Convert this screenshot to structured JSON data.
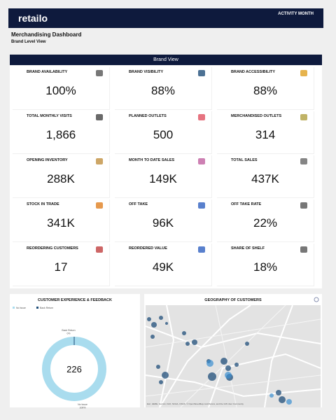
{
  "header": {
    "logo": "retailo",
    "filter": "ACTIVITY MONTH"
  },
  "page": {
    "title": "Merchandising Dashboard",
    "subtitle": "Brand Level View"
  },
  "section": {
    "title": "Brand View"
  },
  "kpis": [
    {
      "label": "BRAND AVAILABILITY",
      "value": "100%"
    },
    {
      "label": "BRAND VISIBILITY",
      "value": "88%"
    },
    {
      "label": "BRAND ACCESSIBILITY",
      "value": "88%"
    },
    {
      "label": "TOTAL MONTHLY VISITS",
      "value": "1,866"
    },
    {
      "label": "PLANNED OUTLETS",
      "value": "500"
    },
    {
      "label": "MERCHANDISED OUTLETS",
      "value": "314"
    },
    {
      "label": "OPENING INVENTORY",
      "value": "288K"
    },
    {
      "label": "MONTH TO DATE SALES",
      "value": "149K"
    },
    {
      "label": "TOTAL SALES",
      "value": "437K"
    },
    {
      "label": "STOCK IN TRADE",
      "value": "341K"
    },
    {
      "label": "OFF TAKE",
      "value": "96K"
    },
    {
      "label": "OFF TAKE RATE",
      "value": "22%"
    },
    {
      "label": "REORDERING CUSTOMERS",
      "value": "17"
    },
    {
      "label": "REORDERED VALUE",
      "value": "49K"
    },
    {
      "label": "SHARE OF SHELF",
      "value": "18%"
    }
  ],
  "feedback": {
    "title": "CUSTOMER EXPERIENCE & FEEDBACK",
    "total": "226",
    "segments": [
      {
        "name": "No Issue",
        "value": 100,
        "value_label": "100%",
        "color": "#a9dcee"
      },
      {
        "name": "Back Return",
        "value": 0,
        "value_label": "0%",
        "color": "#1f4e79"
      }
    ]
  },
  "map": {
    "title": "GEOGRAPHY OF CUSTOMERS",
    "attribution": "Esri, HERE, Garmin, FAO, NOAA, USGS, © OpenStreetMap contributors, and the GIS User Community"
  }
}
